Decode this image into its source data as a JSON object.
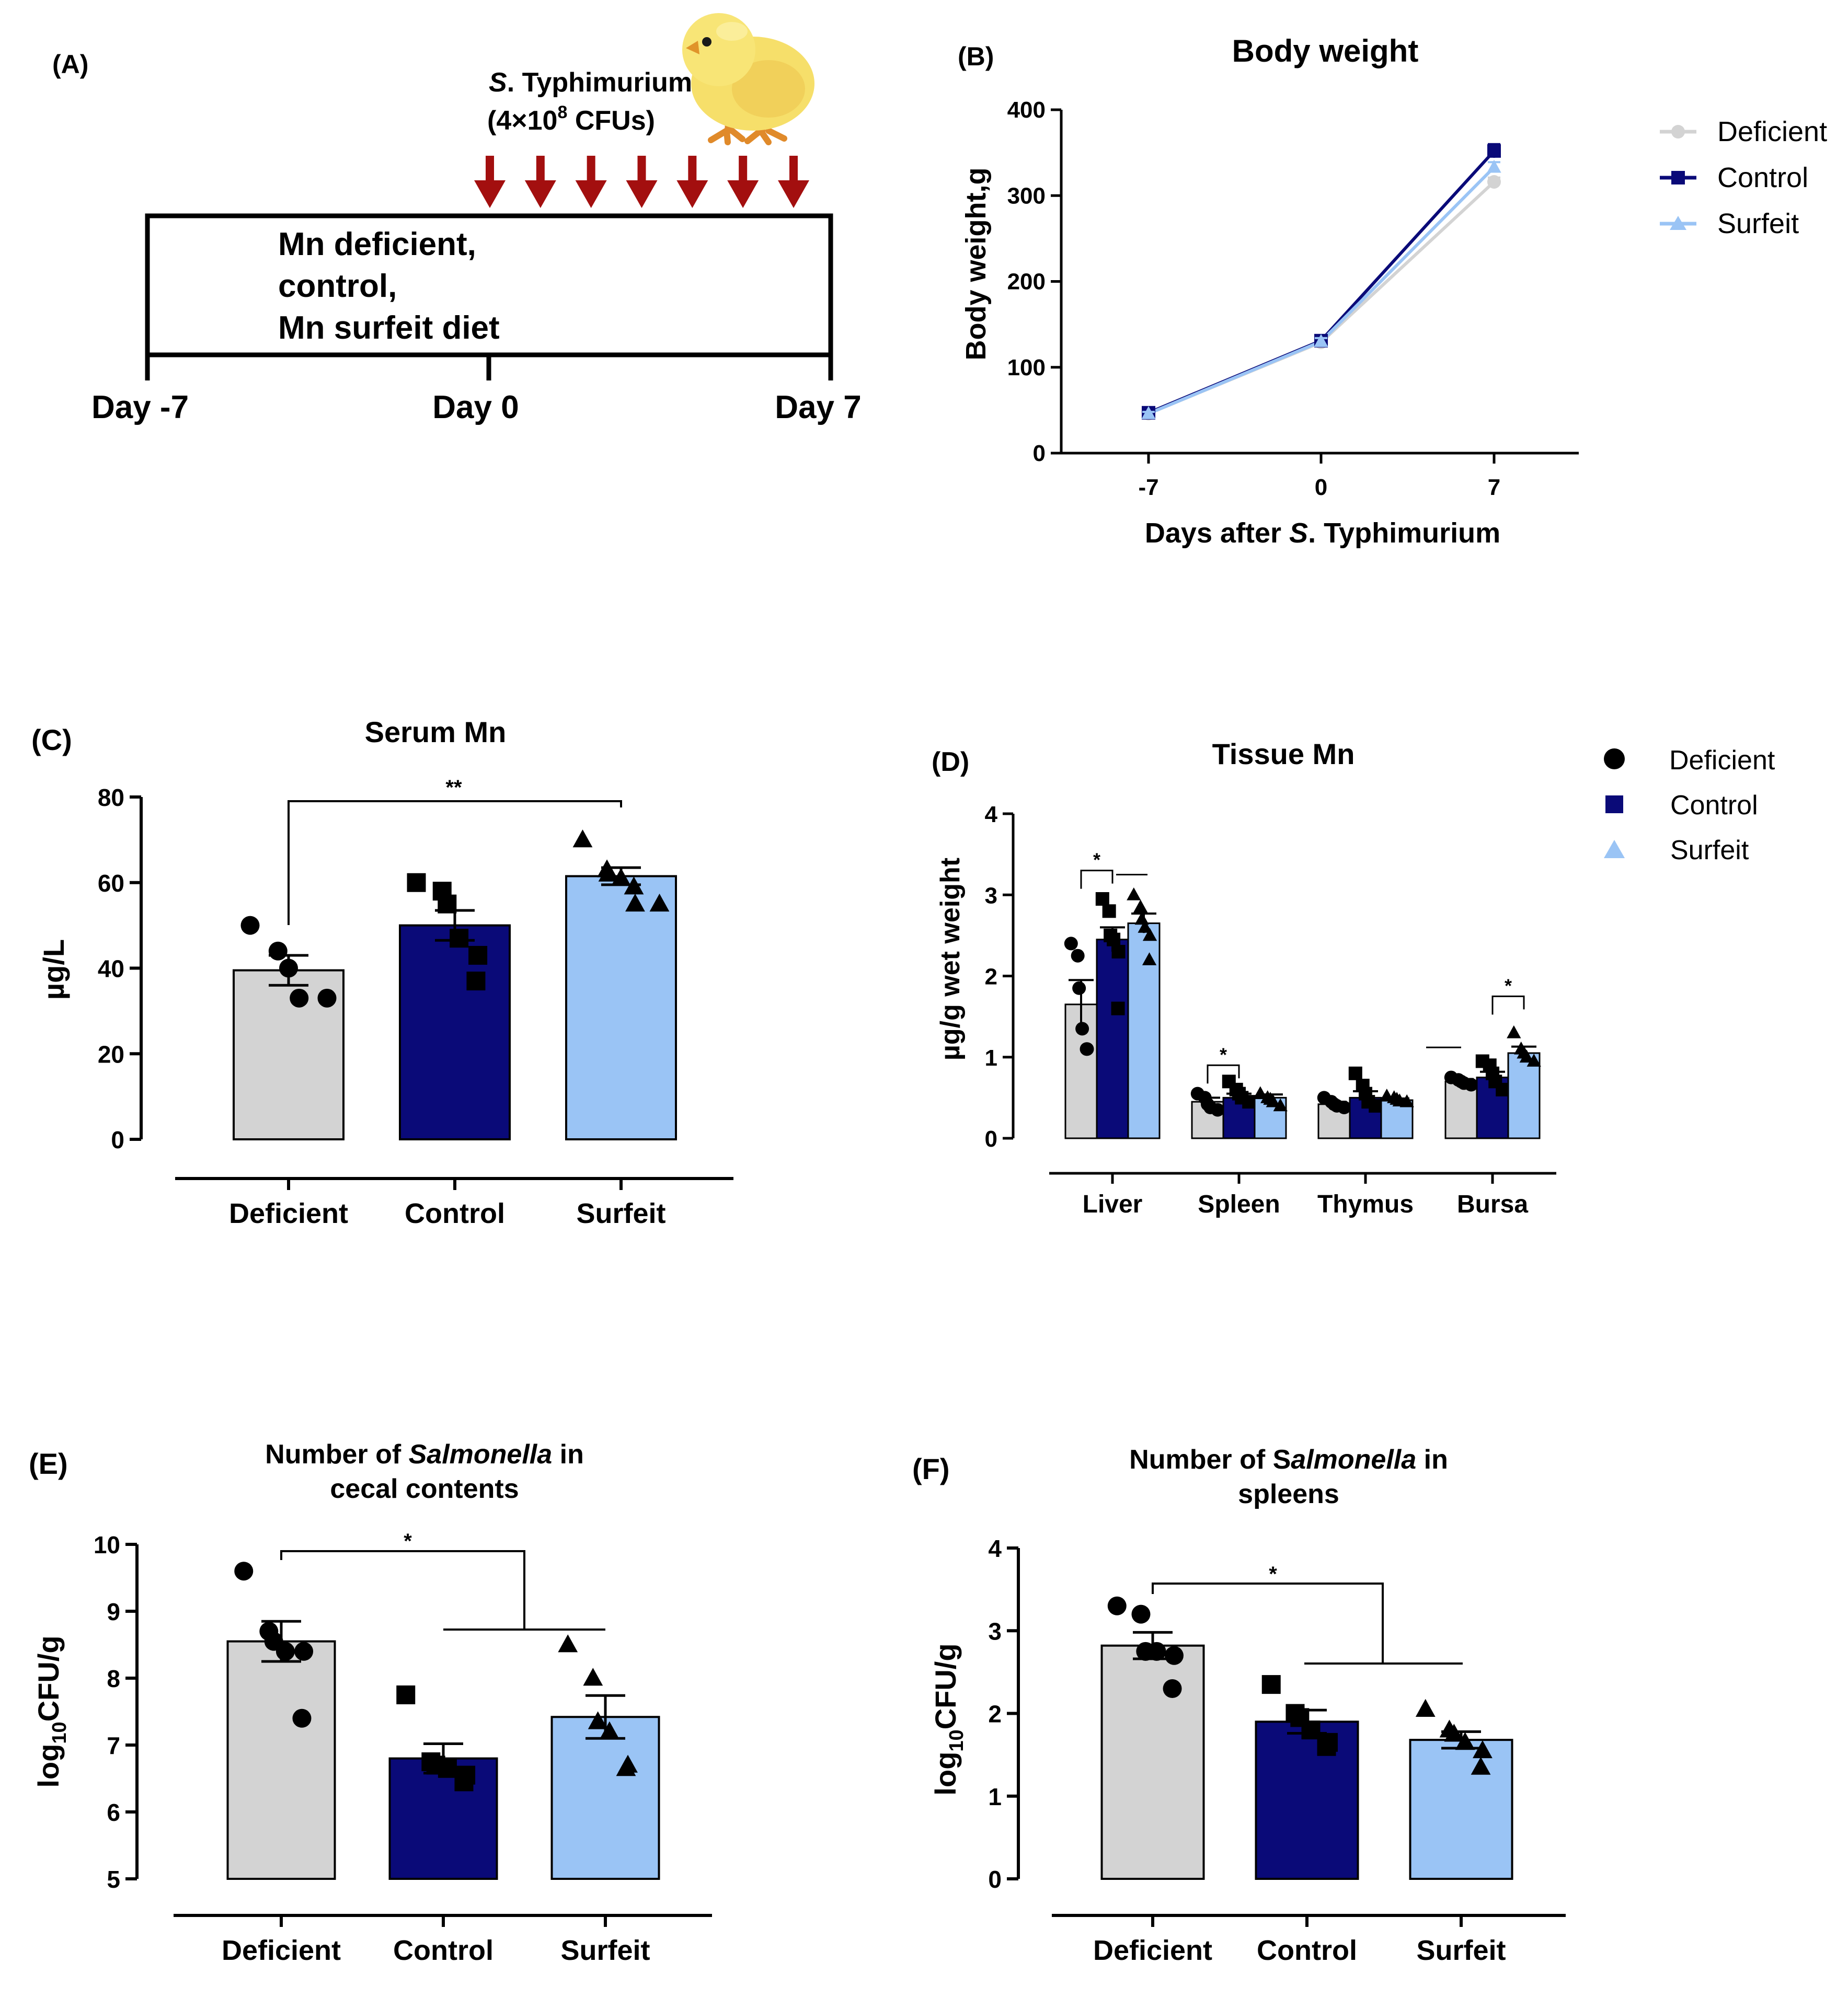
{
  "colors": {
    "deficient": "#d3d3d3",
    "control": "#0a0a78",
    "surfeit": "#9ac4f5",
    "arrow": "#a30f0f",
    "point": "#000000",
    "axis": "#000000"
  },
  "legend": {
    "deficient": "Deficient",
    "control": "Control",
    "surfeit": "Surfeit"
  },
  "panels": {
    "a": {
      "label": "(A)"
    },
    "b": {
      "label": "(B)"
    },
    "c": {
      "label": "(C)"
    },
    "d": {
      "label": "(D)"
    },
    "e": {
      "label": "(E)"
    },
    "f": {
      "label": "(F)"
    }
  },
  "timeline": {
    "infection_line1_italic": "S",
    "infection_line1_rest": ". Typhimurium",
    "infection_line2_pre": "(4×10",
    "infection_line2_sup": "8",
    "infection_line2_post": " CFUs)",
    "box_line1": "Mn deficient,",
    "box_line2": "control,",
    "box_line3": "Mn surfeit diet",
    "day_start": "Day -7",
    "day_mid": "Day 0",
    "day_end": "Day 7",
    "arrow_count": 7
  },
  "chart_data": [
    {
      "id": "B",
      "type": "line",
      "title": "Body weight",
      "ylabel": "Body weight,g",
      "xlabel_pre": "Days after ",
      "xlabel_italic": "S",
      "xlabel_post": ". Typhimurium",
      "categories": [
        "-7",
        "0",
        "7"
      ],
      "ylim": [
        0,
        400
      ],
      "yticks": [
        "0",
        "100",
        "200",
        "300",
        "400"
      ],
      "series": [
        {
          "name": "Deficient",
          "values": [
            46,
            129,
            316
          ],
          "errors": [
            2,
            4,
            5
          ]
        },
        {
          "name": "Control",
          "values": [
            47,
            131,
            352
          ],
          "errors": [
            2,
            4,
            8
          ]
        },
        {
          "name": "Surfeit",
          "values": [
            46,
            130,
            333
          ],
          "errors": [
            2,
            4,
            6
          ]
        }
      ]
    },
    {
      "id": "C",
      "type": "bar",
      "title": "Serum Mn",
      "ylabel": "µg/L",
      "categories": [
        "Deficient",
        "Control",
        "Surfeit"
      ],
      "ylim": [
        0,
        80
      ],
      "yticks": [
        "0",
        "20",
        "40",
        "60",
        "80"
      ],
      "values": [
        39.5,
        50,
        61.5
      ],
      "sem": [
        3.5,
        3.5,
        2
      ],
      "points": [
        [
          50,
          44,
          40,
          33,
          33
        ],
        [
          60,
          58,
          55,
          47,
          43,
          37
        ],
        [
          70,
          63,
          62,
          61,
          59,
          55,
          55
        ]
      ],
      "significance": [
        {
          "from": 0,
          "to": 2,
          "label": "**"
        }
      ]
    },
    {
      "id": "D",
      "type": "bar",
      "title": "Tissue Mn",
      "ylabel": "µg/g wet weight",
      "categories": [
        "Liver",
        "Spleen",
        "Thymus",
        "Bursa"
      ],
      "ylim": [
        0,
        4
      ],
      "yticks": [
        "0",
        "1",
        "2",
        "3",
        "4"
      ],
      "series": [
        {
          "name": "Deficient",
          "values": [
            1.65,
            0.45,
            0.42,
            0.7
          ],
          "sem": [
            0.3,
            0.05,
            0.03,
            0.03
          ],
          "points": [
            [
              2.4,
              2.25,
              1.85,
              1.35,
              1.1,
              1.1
            ],
            [
              0.55,
              0.5,
              0.42,
              0.38,
              0.35
            ],
            [
              0.5,
              0.45,
              0.42,
              0.4,
              0.38
            ],
            [
              0.75,
              0.72,
              0.7,
              0.68,
              0.66
            ]
          ]
        },
        {
          "name": "Control",
          "values": [
            2.45,
            0.5,
            0.5,
            0.75
          ],
          "sem": [
            0.15,
            0.05,
            0.08,
            0.07
          ],
          "points": [
            [
              2.95,
              2.8,
              2.5,
              2.45,
              2.3,
              1.6
            ],
            [
              0.7,
              0.6,
              0.55,
              0.5,
              0.45
            ],
            [
              0.8,
              0.65,
              0.55,
              0.45,
              0.4
            ],
            [
              0.95,
              0.9,
              0.8,
              0.7,
              0.6
            ]
          ]
        },
        {
          "name": "Surfeit",
          "values": [
            2.65,
            0.5,
            0.47,
            1.05
          ],
          "sem": [
            0.12,
            0.04,
            0.02,
            0.08
          ],
          "points": [
            [
              3.0,
              2.85,
              2.7,
              2.6,
              2.5,
              2.2
            ],
            [
              0.55,
              0.5,
              0.48,
              0.45,
              0.4
            ],
            [
              0.52,
              0.5,
              0.48,
              0.46,
              0.45
            ],
            [
              1.3,
              1.1,
              1.05,
              1.0,
              0.95
            ]
          ]
        }
      ],
      "significance": [
        {
          "category": 0,
          "from": 0,
          "to": 1,
          "label": "*"
        },
        {
          "category": 1,
          "from": 0,
          "to": 1,
          "label": "*"
        },
        {
          "category": 3,
          "from": 1,
          "to": 2,
          "label": "*"
        }
      ]
    },
    {
      "id": "E",
      "type": "bar",
      "title_pre": "Number of ",
      "title_italic": "Salmonella",
      "title_post": " in",
      "title_line2": "cecal contents",
      "ylabel_pre": "log",
      "ylabel_sub": "10",
      "ylabel_post": "CFU/g",
      "categories": [
        "Deficient",
        "Control",
        "Surfeit"
      ],
      "ylim": [
        5,
        10
      ],
      "yticks": [
        "5",
        "6",
        "7",
        "8",
        "9",
        "10"
      ],
      "values": [
        8.55,
        6.8,
        7.42
      ],
      "sem": [
        0.3,
        0.22,
        0.32
      ],
      "points": [
        [
          9.6,
          8.7,
          8.55,
          8.4,
          8.4,
          7.4
        ],
        [
          7.75,
          6.75,
          6.7,
          6.65,
          6.55,
          6.45
        ],
        [
          8.5,
          8.0,
          7.35,
          7.2,
          6.7,
          6.65
        ]
      ],
      "significance": [
        {
          "from": 0,
          "to": [
            1,
            2
          ],
          "label": "*"
        }
      ]
    },
    {
      "id": "F",
      "type": "bar",
      "title_pre": "Number of S",
      "title_italic": "almonella",
      "title_post": " in",
      "title_line2": "spleens",
      "ylabel_pre": "log",
      "ylabel_sub": "10",
      "ylabel_post": "CFU/g",
      "categories": [
        "Deficient",
        "Control",
        "Surfeit"
      ],
      "ylim": [
        0,
        4
      ],
      "yticks": [
        "0",
        "1",
        "2",
        "3",
        "4"
      ],
      "values": [
        2.82,
        1.9,
        1.68
      ],
      "sem": [
        0.16,
        0.14,
        0.1
      ],
      "points": [
        [
          3.3,
          3.2,
          2.75,
          2.75,
          2.7,
          2.3
        ],
        [
          2.35,
          2.0,
          1.95,
          1.8,
          1.65,
          1.6
        ],
        [
          2.05,
          1.8,
          1.75,
          1.65,
          1.55,
          1.35
        ]
      ],
      "significance": [
        {
          "from": 0,
          "to": [
            1,
            2
          ],
          "label": "*"
        }
      ]
    }
  ]
}
